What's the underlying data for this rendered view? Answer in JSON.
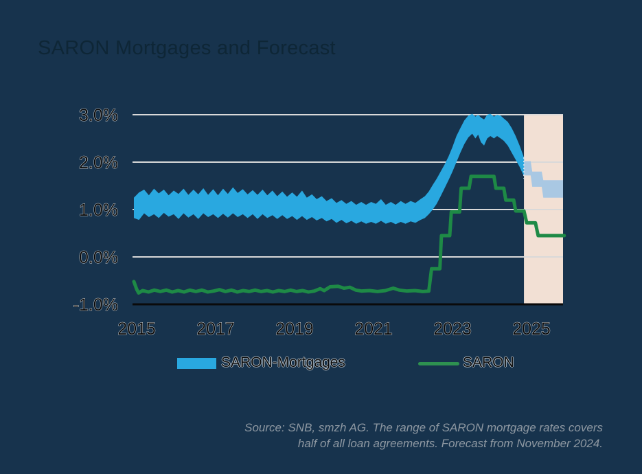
{
  "header": {
    "title": "SARON Mortgages and Forecast"
  },
  "legend": {
    "items": [
      {
        "label": "SARON-Mortgages",
        "swatch": "band-swatch",
        "color": "#29A8E0"
      },
      {
        "label": "SARON",
        "swatch": "line-swatch",
        "color": "#2E9150"
      }
    ]
  },
  "source": {
    "line1": "Source: SNB, smzh AG. The range of SARON mortgage rates covers",
    "line2": "half of all loan agreements. Forecast from November 2024."
  },
  "colors": {
    "background": "#17334D",
    "title_text": "#0E2636",
    "band": "#29A8E0",
    "band_forecast": "#A9C8E3",
    "line": "#1E8A46",
    "forecast_region": "#F2E0D4",
    "gridline": "#D9D9D9",
    "axis": "#0A0A0A",
    "tick_text": "#0B0B0B",
    "source_text": "#8E98A2"
  },
  "chart_data": {
    "type": "area",
    "title": "SARON Mortgages and Forecast",
    "xlabel": "",
    "ylabel": "",
    "ylim": [
      -1.0,
      3.0
    ],
    "xlim": [
      2014.93,
      2025.83
    ],
    "grid": true,
    "legend_position": "bottom",
    "forecast_start": 2024.81,
    "forecast_end": 2025.8,
    "yticks": [
      {
        "v": 3,
        "label": "3.0%"
      },
      {
        "v": 2,
        "label": "2.0%"
      },
      {
        "v": 1,
        "label": "1.0%"
      },
      {
        "v": 0,
        "label": "0.0%"
      },
      {
        "v": -1,
        "label": "-1.0%"
      }
    ],
    "xticks": [
      {
        "v": 2015,
        "label": "2015"
      },
      {
        "v": 2017,
        "label": "2017"
      },
      {
        "v": 2019,
        "label": "2019"
      },
      {
        "v": 2021,
        "label": "2021"
      },
      {
        "v": 2023,
        "label": "2023"
      },
      {
        "v": 2025,
        "label": "2025"
      }
    ],
    "series": [
      {
        "name": "SARON-Mortgages",
        "type": "band",
        "color": "#29A8E0",
        "forecast_color": "#A9C8E3",
        "points": [
          [
            2014.93,
            0.82,
            1.25
          ],
          [
            2015.06,
            0.78,
            1.36
          ],
          [
            2015.19,
            0.92,
            1.42
          ],
          [
            2015.31,
            0.84,
            1.3
          ],
          [
            2015.44,
            0.9,
            1.44
          ],
          [
            2015.56,
            0.82,
            1.34
          ],
          [
            2015.69,
            0.93,
            1.42
          ],
          [
            2015.81,
            0.85,
            1.3
          ],
          [
            2015.94,
            0.9,
            1.4
          ],
          [
            2016.06,
            0.8,
            1.33
          ],
          [
            2016.19,
            0.92,
            1.44
          ],
          [
            2016.31,
            0.83,
            1.31
          ],
          [
            2016.44,
            0.9,
            1.42
          ],
          [
            2016.56,
            0.8,
            1.32
          ],
          [
            2016.69,
            0.92,
            1.45
          ],
          [
            2016.81,
            0.84,
            1.31
          ],
          [
            2016.94,
            0.9,
            1.43
          ],
          [
            2017.06,
            0.82,
            1.3
          ],
          [
            2017.19,
            0.91,
            1.44
          ],
          [
            2017.31,
            0.83,
            1.33
          ],
          [
            2017.44,
            0.92,
            1.47
          ],
          [
            2017.56,
            0.84,
            1.35
          ],
          [
            2017.69,
            0.9,
            1.43
          ],
          [
            2017.81,
            0.82,
            1.32
          ],
          [
            2017.94,
            0.9,
            1.41
          ],
          [
            2018.06,
            0.8,
            1.31
          ],
          [
            2018.19,
            0.9,
            1.42
          ],
          [
            2018.31,
            0.82,
            1.3
          ],
          [
            2018.44,
            0.88,
            1.4
          ],
          [
            2018.56,
            0.8,
            1.28
          ],
          [
            2018.69,
            0.88,
            1.38
          ],
          [
            2018.81,
            0.8,
            1.27
          ],
          [
            2018.94,
            0.86,
            1.36
          ],
          [
            2019.06,
            0.78,
            1.27
          ],
          [
            2019.19,
            0.86,
            1.4
          ],
          [
            2019.31,
            0.78,
            1.25
          ],
          [
            2019.44,
            0.84,
            1.32
          ],
          [
            2019.56,
            0.77,
            1.22
          ],
          [
            2019.69,
            0.82,
            1.28
          ],
          [
            2019.81,
            0.75,
            1.18
          ],
          [
            2019.94,
            0.8,
            1.24
          ],
          [
            2020.06,
            0.72,
            1.14
          ],
          [
            2020.19,
            0.78,
            1.2
          ],
          [
            2020.31,
            0.71,
            1.12
          ],
          [
            2020.44,
            0.76,
            1.18
          ],
          [
            2020.56,
            0.7,
            1.1
          ],
          [
            2020.69,
            0.75,
            1.16
          ],
          [
            2020.81,
            0.7,
            1.1
          ],
          [
            2020.94,
            0.74,
            1.16
          ],
          [
            2021.06,
            0.7,
            1.12
          ],
          [
            2021.19,
            0.76,
            1.22
          ],
          [
            2021.31,
            0.7,
            1.1
          ],
          [
            2021.44,
            0.74,
            1.16
          ],
          [
            2021.56,
            0.69,
            1.1
          ],
          [
            2021.69,
            0.74,
            1.18
          ],
          [
            2021.81,
            0.7,
            1.12
          ],
          [
            2021.94,
            0.75,
            1.18
          ],
          [
            2022.06,
            0.72,
            1.14
          ],
          [
            2022.19,
            0.78,
            1.22
          ],
          [
            2022.3,
            0.82,
            1.28
          ],
          [
            2022.4,
            0.9,
            1.38
          ],
          [
            2022.5,
            1.0,
            1.52
          ],
          [
            2022.6,
            1.12,
            1.65
          ],
          [
            2022.7,
            1.28,
            1.8
          ],
          [
            2022.8,
            1.45,
            1.95
          ],
          [
            2022.9,
            1.62,
            2.12
          ],
          [
            2023.0,
            1.8,
            2.32
          ],
          [
            2023.1,
            2.0,
            2.55
          ],
          [
            2023.2,
            2.2,
            2.72
          ],
          [
            2023.3,
            2.38,
            2.88
          ],
          [
            2023.4,
            2.52,
            2.98
          ],
          [
            2023.5,
            2.6,
            3.02
          ],
          [
            2023.58,
            2.5,
            2.96
          ],
          [
            2023.65,
            2.58,
            3.0
          ],
          [
            2023.72,
            2.42,
            2.94
          ],
          [
            2023.8,
            2.35,
            2.9
          ],
          [
            2023.88,
            2.5,
            3.0
          ],
          [
            2023.96,
            2.55,
            3.02
          ],
          [
            2024.05,
            2.5,
            2.96
          ],
          [
            2024.13,
            2.55,
            3.0
          ],
          [
            2024.22,
            2.5,
            2.98
          ],
          [
            2024.3,
            2.45,
            2.92
          ],
          [
            2024.4,
            2.35,
            2.85
          ],
          [
            2024.5,
            2.2,
            2.72
          ],
          [
            2024.6,
            2.05,
            2.55
          ],
          [
            2024.7,
            1.9,
            2.35
          ],
          [
            2024.81,
            1.7,
            2.1
          ]
        ],
        "forecast_points": [
          [
            2024.81,
            1.72,
            2.02
          ],
          [
            2024.98,
            1.72,
            2.02
          ],
          [
            2025.02,
            1.48,
            1.8
          ],
          [
            2025.26,
            1.48,
            1.8
          ],
          [
            2025.3,
            1.25,
            1.62
          ],
          [
            2025.8,
            1.25,
            1.62
          ]
        ]
      },
      {
        "name": "SARON",
        "type": "line",
        "color": "#1E8A46",
        "points": [
          [
            2014.93,
            -0.52
          ],
          [
            2015.0,
            -0.68
          ],
          [
            2015.05,
            -0.76
          ],
          [
            2015.15,
            -0.71
          ],
          [
            2015.3,
            -0.74
          ],
          [
            2015.45,
            -0.7
          ],
          [
            2015.6,
            -0.73
          ],
          [
            2015.75,
            -0.7
          ],
          [
            2015.9,
            -0.74
          ],
          [
            2016.05,
            -0.71
          ],
          [
            2016.2,
            -0.74
          ],
          [
            2016.35,
            -0.7
          ],
          [
            2016.5,
            -0.73
          ],
          [
            2016.65,
            -0.7
          ],
          [
            2016.8,
            -0.74
          ],
          [
            2016.95,
            -0.72
          ],
          [
            2017.1,
            -0.69
          ],
          [
            2017.25,
            -0.73
          ],
          [
            2017.4,
            -0.7
          ],
          [
            2017.55,
            -0.74
          ],
          [
            2017.7,
            -0.71
          ],
          [
            2017.85,
            -0.73
          ],
          [
            2018.0,
            -0.7
          ],
          [
            2018.15,
            -0.73
          ],
          [
            2018.3,
            -0.71
          ],
          [
            2018.45,
            -0.74
          ],
          [
            2018.6,
            -0.71
          ],
          [
            2018.75,
            -0.73
          ],
          [
            2018.9,
            -0.7
          ],
          [
            2019.05,
            -0.73
          ],
          [
            2019.2,
            -0.71
          ],
          [
            2019.35,
            -0.74
          ],
          [
            2019.5,
            -0.72
          ],
          [
            2019.65,
            -0.67
          ],
          [
            2019.75,
            -0.71
          ],
          [
            2019.9,
            -0.63
          ],
          [
            2020.1,
            -0.62
          ],
          [
            2020.25,
            -0.66
          ],
          [
            2020.4,
            -0.64
          ],
          [
            2020.55,
            -0.7
          ],
          [
            2020.7,
            -0.72
          ],
          [
            2020.9,
            -0.71
          ],
          [
            2021.1,
            -0.73
          ],
          [
            2021.3,
            -0.71
          ],
          [
            2021.5,
            -0.66
          ],
          [
            2021.65,
            -0.7
          ],
          [
            2021.85,
            -0.72
          ],
          [
            2022.05,
            -0.71
          ],
          [
            2022.25,
            -0.73
          ],
          [
            2022.4,
            -0.72
          ],
          [
            2022.47,
            -0.25
          ],
          [
            2022.68,
            -0.25
          ],
          [
            2022.72,
            0.45
          ],
          [
            2022.93,
            0.45
          ],
          [
            2022.97,
            0.95
          ],
          [
            2023.18,
            0.95
          ],
          [
            2023.22,
            1.45
          ],
          [
            2023.42,
            1.45
          ],
          [
            2023.47,
            1.7
          ],
          [
            2024.05,
            1.7
          ],
          [
            2024.1,
            1.45
          ],
          [
            2024.3,
            1.45
          ],
          [
            2024.35,
            1.2
          ],
          [
            2024.55,
            1.2
          ],
          [
            2024.6,
            0.97
          ],
          [
            2024.81,
            0.97
          ]
        ],
        "forecast_points": [
          [
            2024.81,
            0.97
          ],
          [
            2024.88,
            0.72
          ],
          [
            2025.1,
            0.72
          ],
          [
            2025.17,
            0.45
          ],
          [
            2025.83,
            0.45
          ]
        ]
      }
    ]
  }
}
